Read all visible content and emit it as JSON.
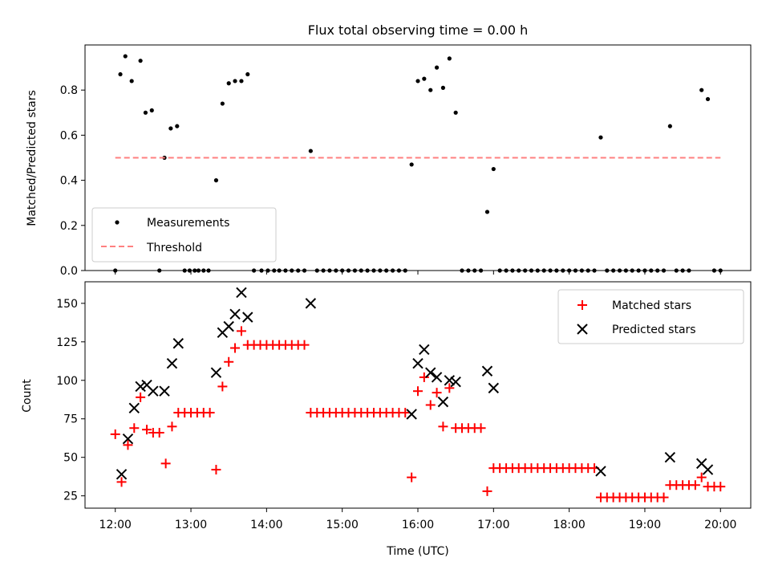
{
  "figure_title": "Flux total observing time = 0.00 h",
  "x_axis_label": "Time (UTC)",
  "chart_data": [
    {
      "type": "scatter",
      "name_key": "ratio-panel",
      "ylabel": "Matched/Predicted stars",
      "ylim": [
        0,
        1.0
      ],
      "xlim": [
        11.6,
        20.4
      ],
      "yticks": [
        0.0,
        0.2,
        0.4,
        0.6,
        0.8
      ],
      "ytick_labels": [
        "0.0",
        "0.2",
        "0.4",
        "0.6",
        "0.8"
      ],
      "legend": {
        "placement": "lower-left",
        "entries": [
          "Measurements",
          "Threshold"
        ]
      },
      "series": [
        {
          "name": "Measurements",
          "color": "#000000",
          "marker": "dot",
          "points": [
            [
              12.0,
              0.0
            ],
            [
              12.067,
              0.87
            ],
            [
              12.133,
              0.95
            ],
            [
              12.217,
              0.84
            ],
            [
              12.333,
              0.93
            ],
            [
              12.4,
              0.7
            ],
            [
              12.483,
              0.71
            ],
            [
              12.583,
              0.0
            ],
            [
              12.65,
              0.5
            ],
            [
              12.733,
              0.63
            ],
            [
              12.817,
              0.64
            ],
            [
              12.917,
              0.0
            ],
            [
              12.983,
              0.0
            ],
            [
              13.05,
              0.0
            ],
            [
              13.1,
              0.0
            ],
            [
              13.167,
              0.0
            ],
            [
              13.233,
              0.0
            ],
            [
              13.333,
              0.4
            ],
            [
              13.417,
              0.74
            ],
            [
              13.5,
              0.83
            ],
            [
              13.583,
              0.84
            ],
            [
              13.667,
              0.84
            ],
            [
              13.75,
              0.87
            ],
            [
              13.833,
              0.0
            ],
            [
              13.933,
              0.0
            ],
            [
              14.017,
              0.0
            ],
            [
              14.1,
              0.0
            ],
            [
              14.167,
              0.0
            ],
            [
              14.25,
              0.0
            ],
            [
              14.333,
              0.0
            ],
            [
              14.417,
              0.0
            ],
            [
              14.5,
              0.0
            ],
            [
              14.583,
              0.53
            ],
            [
              14.667,
              0.0
            ],
            [
              14.75,
              0.0
            ],
            [
              14.833,
              0.0
            ],
            [
              14.917,
              0.0
            ],
            [
              15.0,
              0.0
            ],
            [
              15.083,
              0.0
            ],
            [
              15.167,
              0.0
            ],
            [
              15.25,
              0.0
            ],
            [
              15.333,
              0.0
            ],
            [
              15.417,
              0.0
            ],
            [
              15.5,
              0.0
            ],
            [
              15.583,
              0.0
            ],
            [
              15.667,
              0.0
            ],
            [
              15.75,
              0.0
            ],
            [
              15.833,
              0.0
            ],
            [
              15.917,
              0.47
            ],
            [
              16.0,
              0.84
            ],
            [
              16.083,
              0.85
            ],
            [
              16.167,
              0.8
            ],
            [
              16.25,
              0.9
            ],
            [
              16.333,
              0.81
            ],
            [
              16.417,
              0.94
            ],
            [
              16.5,
              0.7
            ],
            [
              16.583,
              0.0
            ],
            [
              16.667,
              0.0
            ],
            [
              16.75,
              0.0
            ],
            [
              16.833,
              0.0
            ],
            [
              16.917,
              0.26
            ],
            [
              17.0,
              0.45
            ],
            [
              17.083,
              0.0
            ],
            [
              17.167,
              0.0
            ],
            [
              17.25,
              0.0
            ],
            [
              17.333,
              0.0
            ],
            [
              17.417,
              0.0
            ],
            [
              17.5,
              0.0
            ],
            [
              17.583,
              0.0
            ],
            [
              17.667,
              0.0
            ],
            [
              17.75,
              0.0
            ],
            [
              17.833,
              0.0
            ],
            [
              17.917,
              0.0
            ],
            [
              18.0,
              0.0
            ],
            [
              18.083,
              0.0
            ],
            [
              18.167,
              0.0
            ],
            [
              18.25,
              0.0
            ],
            [
              18.333,
              0.0
            ],
            [
              18.417,
              0.59
            ],
            [
              18.5,
              0.0
            ],
            [
              18.583,
              0.0
            ],
            [
              18.667,
              0.0
            ],
            [
              18.75,
              0.0
            ],
            [
              18.833,
              0.0
            ],
            [
              18.917,
              0.0
            ],
            [
              19.0,
              0.0
            ],
            [
              19.083,
              0.0
            ],
            [
              19.167,
              0.0
            ],
            [
              19.25,
              0.0
            ],
            [
              19.333,
              0.64
            ],
            [
              19.417,
              0.0
            ],
            [
              19.5,
              0.0
            ],
            [
              19.583,
              0.0
            ],
            [
              19.75,
              0.8
            ],
            [
              19.833,
              0.76
            ],
            [
              19.917,
              0.0
            ],
            [
              20.0,
              0.0
            ]
          ]
        },
        {
          "name": "Threshold",
          "color": "#ff8080",
          "style": "dashed",
          "points": [
            [
              12.0,
              0.5
            ],
            [
              20.0,
              0.5
            ]
          ]
        }
      ]
    },
    {
      "type": "scatter",
      "name_key": "count-panel",
      "ylabel": "Count",
      "ylim": [
        17,
        164
      ],
      "xlim": [
        11.6,
        20.4
      ],
      "yticks": [
        25,
        50,
        75,
        100,
        125,
        150
      ],
      "ytick_labels": [
        "25",
        "50",
        "75",
        "100",
        "125",
        "150"
      ],
      "xticks": [
        12,
        13,
        14,
        15,
        16,
        17,
        18,
        19,
        20
      ],
      "xtick_labels": [
        "12:00",
        "13:00",
        "14:00",
        "15:00",
        "16:00",
        "17:00",
        "18:00",
        "19:00",
        "20:00"
      ],
      "legend": {
        "placement": "top-right",
        "entries": [
          "Matched stars",
          "Predicted stars"
        ]
      },
      "series": [
        {
          "name": "Matched stars",
          "color": "#ff0000",
          "marker": "plus",
          "points": [
            [
              12.0,
              65
            ],
            [
              12.083,
              34
            ],
            [
              12.167,
              58
            ],
            [
              12.25,
              69
            ],
            [
              12.333,
              89
            ],
            [
              12.417,
              68
            ],
            [
              12.5,
              66
            ],
            [
              12.583,
              66
            ],
            [
              12.667,
              46
            ],
            [
              12.75,
              70
            ],
            [
              12.833,
              79
            ],
            [
              12.917,
              79
            ],
            [
              13.0,
              79
            ],
            [
              13.083,
              79
            ],
            [
              13.167,
              79
            ],
            [
              13.25,
              79
            ],
            [
              13.333,
              42
            ],
            [
              13.417,
              96
            ],
            [
              13.5,
              112
            ],
            [
              13.583,
              121
            ],
            [
              13.667,
              132
            ],
            [
              13.75,
              123
            ],
            [
              13.833,
              123
            ],
            [
              13.917,
              123
            ],
            [
              14.0,
              123
            ],
            [
              14.083,
              123
            ],
            [
              14.167,
              123
            ],
            [
              14.25,
              123
            ],
            [
              14.333,
              123
            ],
            [
              14.417,
              123
            ],
            [
              14.5,
              123
            ],
            [
              14.583,
              79
            ],
            [
              14.667,
              79
            ],
            [
              14.75,
              79
            ],
            [
              14.833,
              79
            ],
            [
              14.917,
              79
            ],
            [
              15.0,
              79
            ],
            [
              15.083,
              79
            ],
            [
              15.167,
              79
            ],
            [
              15.25,
              79
            ],
            [
              15.333,
              79
            ],
            [
              15.417,
              79
            ],
            [
              15.5,
              79
            ],
            [
              15.583,
              79
            ],
            [
              15.667,
              79
            ],
            [
              15.75,
              79
            ],
            [
              15.833,
              79
            ],
            [
              15.917,
              37
            ],
            [
              16.0,
              93
            ],
            [
              16.083,
              102
            ],
            [
              16.167,
              84
            ],
            [
              16.25,
              92
            ],
            [
              16.333,
              70
            ],
            [
              16.417,
              95
            ],
            [
              16.5,
              69
            ],
            [
              16.583,
              69
            ],
            [
              16.667,
              69
            ],
            [
              16.75,
              69
            ],
            [
              16.833,
              69
            ],
            [
              16.917,
              28
            ],
            [
              17.0,
              43
            ],
            [
              17.083,
              43
            ],
            [
              17.167,
              43
            ],
            [
              17.25,
              43
            ],
            [
              17.333,
              43
            ],
            [
              17.417,
              43
            ],
            [
              17.5,
              43
            ],
            [
              17.583,
              43
            ],
            [
              17.667,
              43
            ],
            [
              17.75,
              43
            ],
            [
              17.833,
              43
            ],
            [
              17.917,
              43
            ],
            [
              18.0,
              43
            ],
            [
              18.083,
              43
            ],
            [
              18.167,
              43
            ],
            [
              18.25,
              43
            ],
            [
              18.333,
              43
            ],
            [
              18.417,
              24
            ],
            [
              18.5,
              24
            ],
            [
              18.583,
              24
            ],
            [
              18.667,
              24
            ],
            [
              18.75,
              24
            ],
            [
              18.833,
              24
            ],
            [
              18.917,
              24
            ],
            [
              19.0,
              24
            ],
            [
              19.083,
              24
            ],
            [
              19.167,
              24
            ],
            [
              19.25,
              24
            ],
            [
              19.333,
              32
            ],
            [
              19.417,
              32
            ],
            [
              19.5,
              32
            ],
            [
              19.583,
              32
            ],
            [
              19.667,
              32
            ],
            [
              19.75,
              37
            ],
            [
              19.833,
              31
            ],
            [
              19.917,
              31
            ],
            [
              20.0,
              31
            ]
          ]
        },
        {
          "name": "Predicted stars",
          "color": "#000000",
          "marker": "x",
          "points": [
            [
              12.083,
              39
            ],
            [
              12.167,
              62
            ],
            [
              12.25,
              82
            ],
            [
              12.333,
              96
            ],
            [
              12.417,
              97
            ],
            [
              12.5,
              93
            ],
            [
              12.65,
              93
            ],
            [
              12.75,
              111
            ],
            [
              12.833,
              124
            ],
            [
              13.333,
              105
            ],
            [
              13.417,
              131
            ],
            [
              13.5,
              135
            ],
            [
              13.583,
              143
            ],
            [
              13.667,
              157
            ],
            [
              13.75,
              141
            ],
            [
              14.583,
              150
            ],
            [
              15.917,
              78
            ],
            [
              16.0,
              111
            ],
            [
              16.083,
              120
            ],
            [
              16.167,
              105
            ],
            [
              16.25,
              102
            ],
            [
              16.333,
              86
            ],
            [
              16.417,
              100
            ],
            [
              16.5,
              99
            ],
            [
              16.917,
              106
            ],
            [
              17.0,
              95
            ],
            [
              18.417,
              41
            ],
            [
              19.333,
              50
            ],
            [
              19.75,
              46
            ],
            [
              19.833,
              42
            ]
          ]
        }
      ]
    }
  ]
}
